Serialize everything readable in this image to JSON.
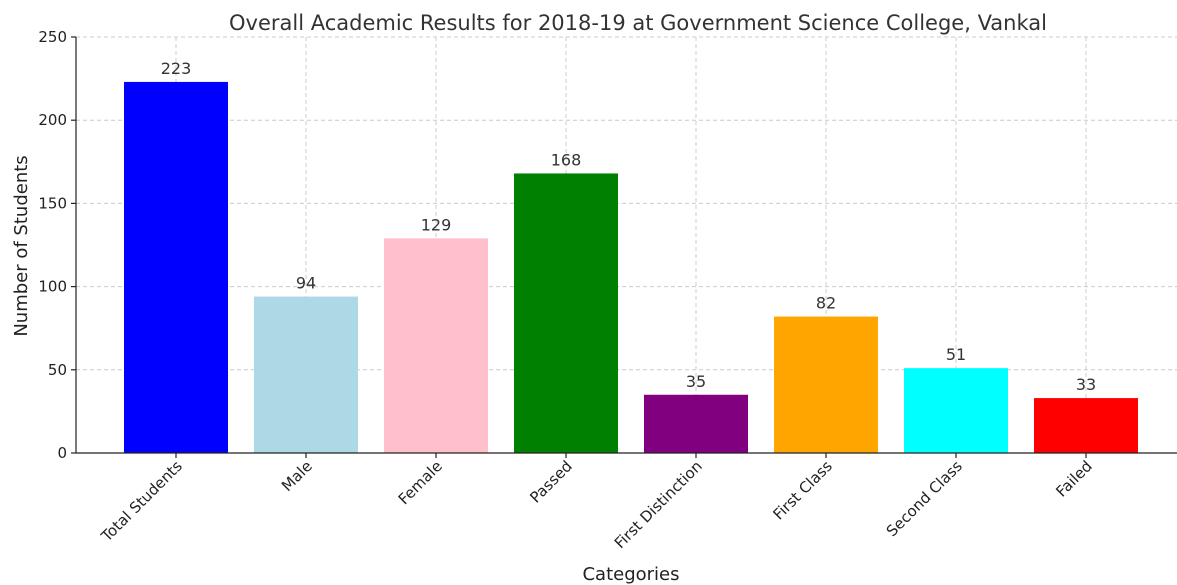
{
  "chart_data": {
    "type": "bar",
    "title": "Overall Academic Results for 2018-19 at Government Science College, Vankal",
    "xlabel": "Categories",
    "ylabel": "Number of Students",
    "ylim": [
      0,
      250
    ],
    "yticks": [
      0,
      50,
      100,
      150,
      200,
      250
    ],
    "grid": true,
    "categories": [
      "Total Students",
      "Male",
      "Female",
      "Passed",
      "First Distinction",
      "First Class",
      "Second Class",
      "Failed"
    ],
    "values": [
      223,
      94,
      129,
      168,
      35,
      82,
      51,
      33
    ],
    "colors": [
      "#0000ff",
      "#add8e6",
      "#ffc0cb",
      "#008000",
      "#800080",
      "#ffa500",
      "#00ffff",
      "#ff0000"
    ]
  }
}
